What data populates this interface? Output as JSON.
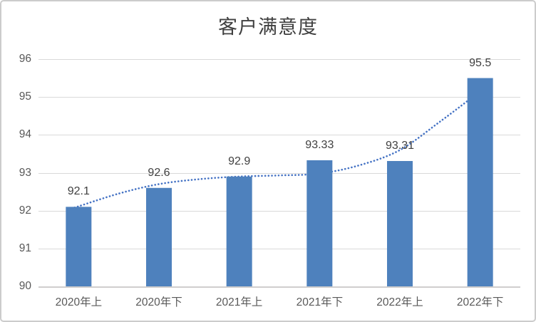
{
  "chart_data": {
    "type": "bar",
    "title": "客户满意度",
    "categories": [
      "2020年上",
      "2020年下",
      "2021年上",
      "2021年下",
      "2022年上",
      "2022年下"
    ],
    "values": [
      92.1,
      92.6,
      92.9,
      93.33,
      93.31,
      95.5
    ],
    "data_labels": [
      "92.1",
      "92.6",
      "92.9",
      "93.33",
      "93.31",
      "95.5"
    ],
    "xlabel": "",
    "ylabel": "",
    "ylim": [
      90,
      96
    ],
    "yticks": [
      90,
      91,
      92,
      93,
      94,
      95,
      96
    ],
    "grid": true,
    "legend_position": "none",
    "trendline": {
      "style": "dotted",
      "points_cat_value": [
        [
          0.45,
          92.08
        ],
        [
          1.0,
          92.45
        ],
        [
          1.5,
          92.7
        ],
        [
          2.0,
          92.83
        ],
        [
          2.5,
          92.9
        ],
        [
          3.0,
          92.93
        ],
        [
          3.5,
          92.98
        ],
        [
          4.0,
          93.2
        ],
        [
          4.5,
          93.6
        ],
        [
          5.0,
          94.35
        ],
        [
          5.5,
          95.15
        ]
      ]
    }
  },
  "colors": {
    "bar": "#4E81BD",
    "trendline": "#4472C4",
    "gridline": "#D9D9D9",
    "axis_line": "#D0CECE",
    "axis_text": "#595959",
    "data_label_text": "#404040",
    "title_text": "#404040",
    "border": "#CCCCCC",
    "background": "#FFFFFF"
  }
}
